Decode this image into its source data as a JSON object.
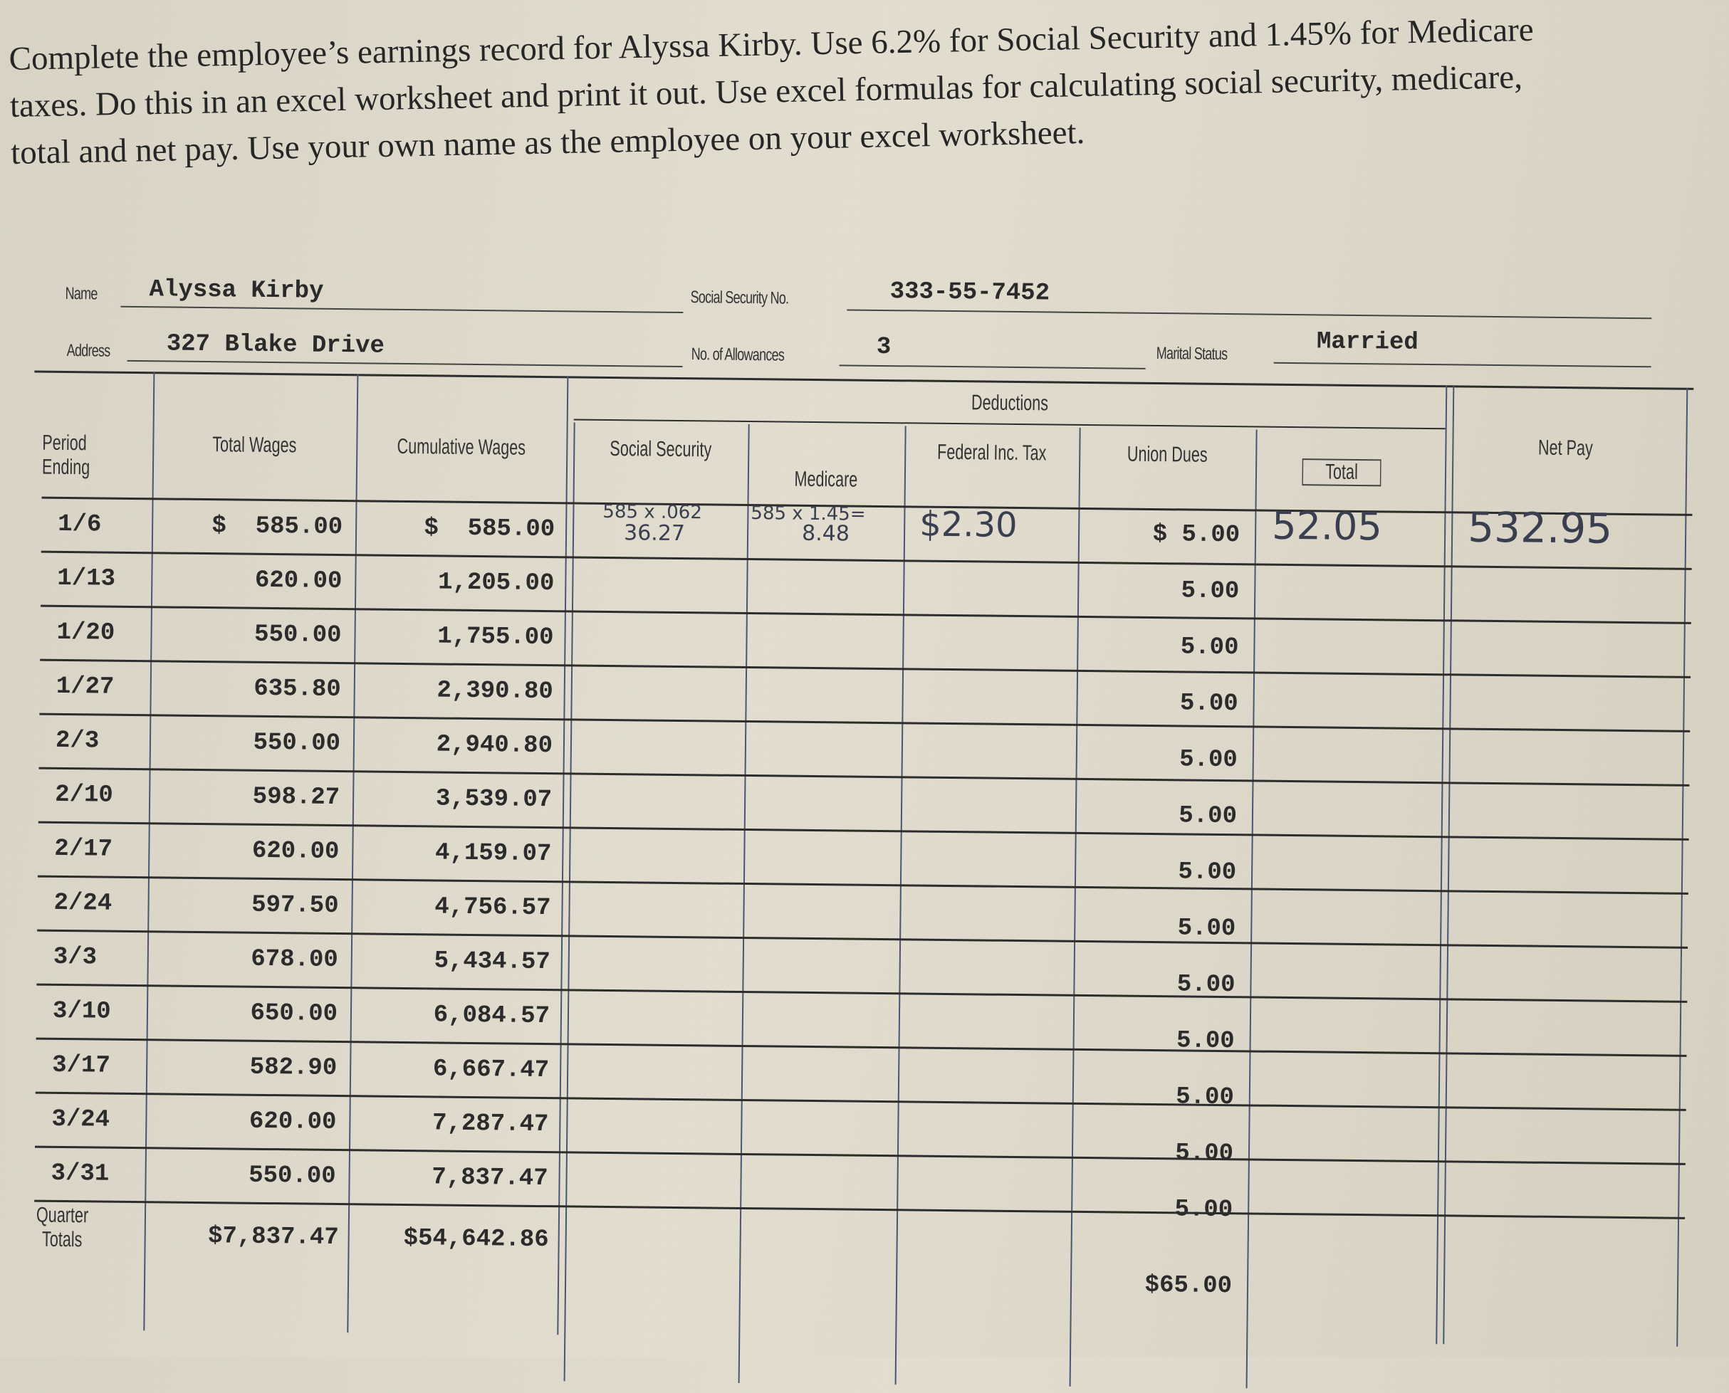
{
  "instructions": [
    "Complete the employee’s earnings record for Alyssa Kirby. Use 6.2% for Social Security and 1.45% for Medicare",
    "taxes. Do this in an excel worksheet and print it out. Use excel formulas for calculating social security, medicare,",
    "total and net pay. Use your own name as the employee on your excel worksheet."
  ],
  "employee": {
    "name_label": "Name",
    "name": "Alyssa Kirby",
    "ssn_label": "Social Security No.",
    "ssn": "333-55-7452",
    "address_label": "Address",
    "address": "327 Blake Drive",
    "allowances_label": "No. of Allowances",
    "allowances": "3",
    "marital_label": "Marital Status",
    "marital": "Married"
  },
  "headers": {
    "period": "Period Ending",
    "total_wages": "Total Wages",
    "cumulative": "Cumulative Wages",
    "deductions": "Deductions",
    "social_security": "Social Security",
    "medicare": "Medicare",
    "federal": "Federal Inc. Tax",
    "union": "Union Dues",
    "total": "Total",
    "net_pay": "Net Pay"
  },
  "rows": [
    {
      "period": "1/6",
      "wages": "$  585.00",
      "cumulative": "$  585.00",
      "union": "$ 5.00"
    },
    {
      "period": "1/13",
      "wages": "620.00",
      "cumulative": "1,205.00",
      "union": "5.00"
    },
    {
      "period": "1/20",
      "wages": "550.00",
      "cumulative": "1,755.00",
      "union": "5.00"
    },
    {
      "period": "1/27",
      "wages": "635.80",
      "cumulative": "2,390.80",
      "union": "5.00"
    },
    {
      "period": "2/3",
      "wages": "550.00",
      "cumulative": "2,940.80",
      "union": "5.00"
    },
    {
      "period": "2/10",
      "wages": "598.27",
      "cumulative": "3,539.07",
      "union": "5.00"
    },
    {
      "period": "2/17",
      "wages": "620.00",
      "cumulative": "4,159.07",
      "union": "5.00"
    },
    {
      "period": "2/24",
      "wages": "597.50",
      "cumulative": "4,756.57",
      "union": "5.00"
    },
    {
      "period": "3/3",
      "wages": "678.00",
      "cumulative": "5,434.57",
      "union": "5.00"
    },
    {
      "period": "3/10",
      "wages": "650.00",
      "cumulative": "6,084.57",
      "union": "5.00"
    },
    {
      "period": "3/17",
      "wages": "582.90",
      "cumulative": "6,667.47",
      "union": "5.00"
    },
    {
      "period": "3/24",
      "wages": "620.00",
      "cumulative": "7,287.47",
      "union": "5.00"
    },
    {
      "period": "3/31",
      "wages": "550.00",
      "cumulative": "7,837.47",
      "union": "5.00"
    }
  ],
  "totals": {
    "label": "Quarter Totals",
    "wages": "$7,837.47",
    "cumulative": "$54,642.86",
    "union": "$65.00"
  },
  "handwritten": {
    "ss_formula": "585 x .062",
    "ss_value": "36.27",
    "medicare_formula": "585 x 1.45=",
    "medicare_value": "8.48",
    "federal": "$2.30",
    "total": "52.05",
    "net_pay": "532.95"
  }
}
